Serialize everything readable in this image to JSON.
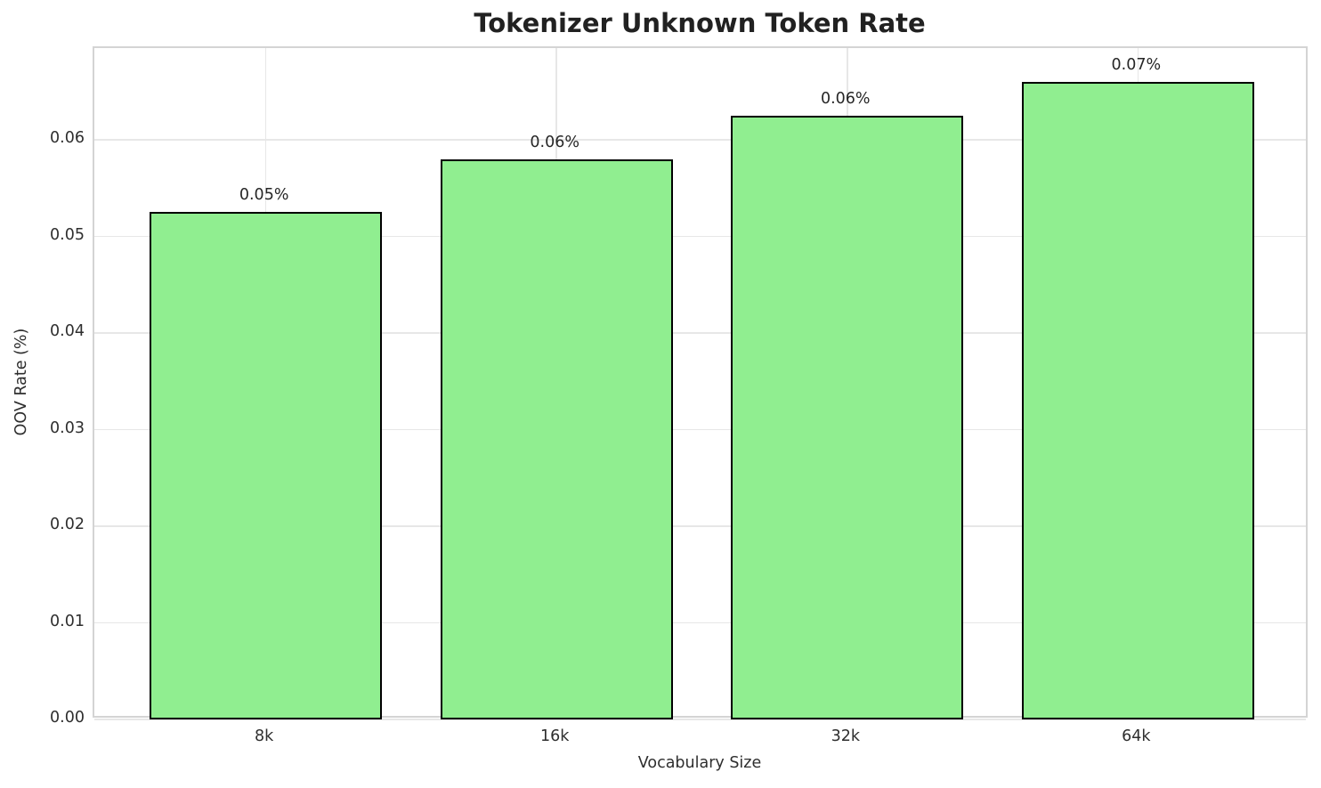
{
  "chart_data": {
    "type": "bar",
    "title": "Tokenizer Unknown Token Rate",
    "xlabel": "Vocabulary Size",
    "ylabel": "OOV Rate (%)",
    "categories": [
      "8k",
      "16k",
      "32k",
      "64k"
    ],
    "values": [
      0.0525,
      0.058,
      0.0625,
      0.066
    ],
    "bar_labels": [
      "0.05%",
      "0.06%",
      "0.06%",
      "0.07%"
    ],
    "y_ticks": [
      0,
      0.01,
      0.02,
      0.03,
      0.04,
      0.05,
      0.06
    ],
    "y_tick_labels": [
      "0.00",
      "0.01",
      "0.02",
      "0.03",
      "0.04",
      "0.05",
      "0.06"
    ],
    "ylim": [
      0,
      0.0695
    ],
    "xlim": [
      -0.59,
      3.59
    ],
    "bar_width": 0.8,
    "grid": true,
    "legend_position": "none",
    "colors": {
      "bar_fill": "#90EE90",
      "bar_edge": "#000000",
      "grid_line": "#E7E7E7",
      "spine": "#D4D4D4",
      "title_text": "#212121",
      "label_text": "#2E2E2E",
      "background": "#FFFFFF"
    }
  }
}
